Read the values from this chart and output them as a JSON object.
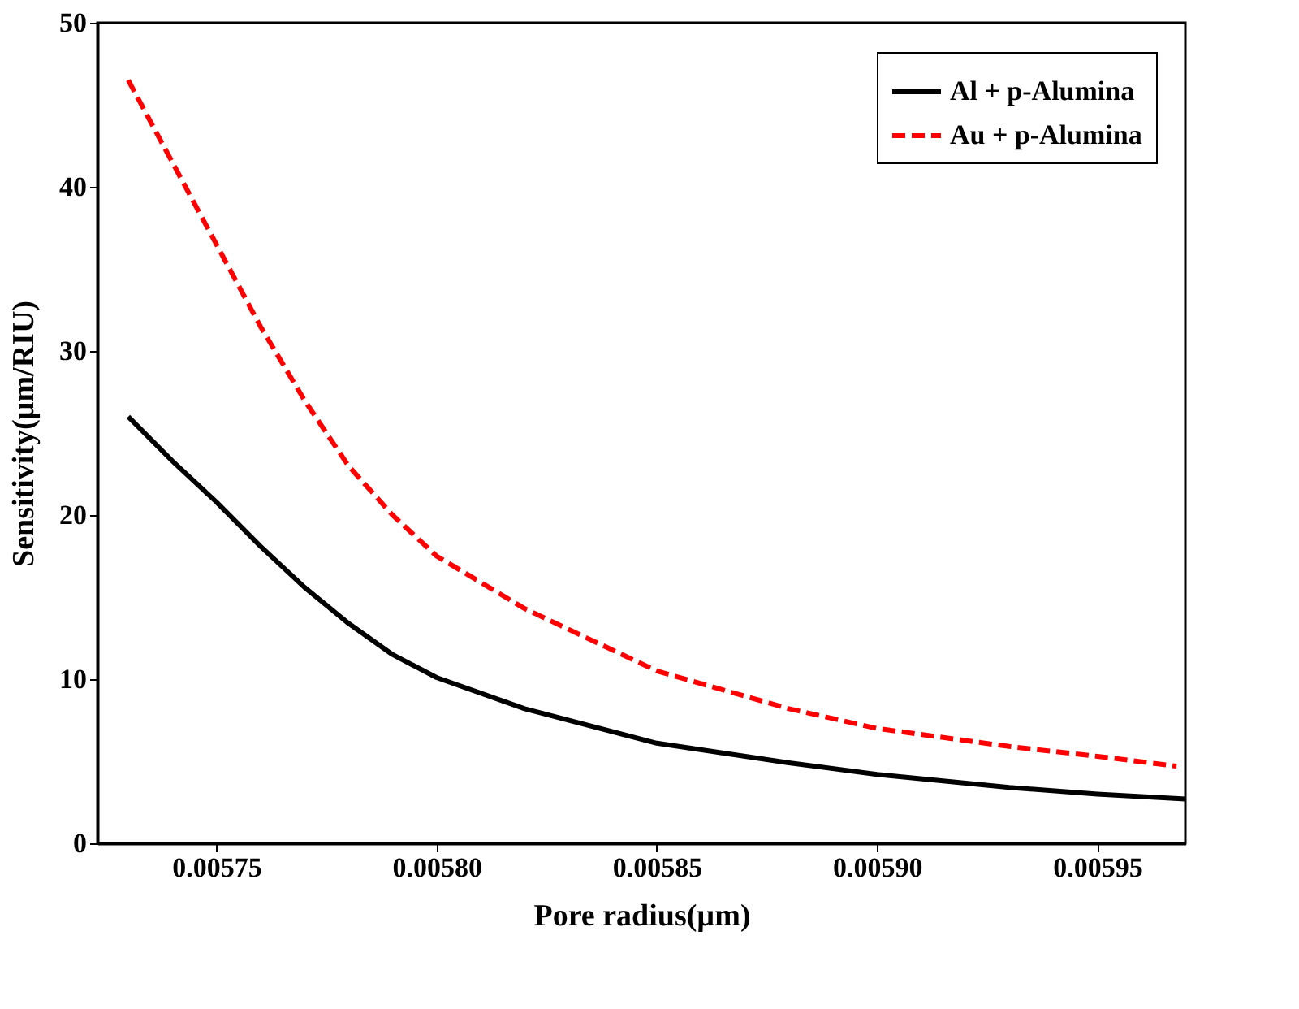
{
  "chart_data": {
    "type": "line",
    "xlabel": "Pore radius(µm)",
    "ylabel": "Sensitivity(µm/RIU)",
    "xlim": [
      0.005723,
      0.00597
    ],
    "ylim": [
      0,
      50
    ],
    "xticks": [
      0.00575,
      {
        "value": 0.0058,
        "label": "0.00580"
      },
      0.00585,
      {
        "value": 0.0059,
        "label": "0.00590"
      },
      0.00595
    ],
    "yticks": [
      0,
      10,
      20,
      30,
      40,
      50
    ],
    "grid": false,
    "legend": "top right",
    "series": [
      {
        "name": "Al + p-Alumina",
        "color": "#000000",
        "line_style": "solid",
        "x": [
          0.00573,
          0.00574,
          0.00575,
          0.00576,
          0.00577,
          0.00578,
          0.00579,
          0.0058,
          0.00582,
          0.00585,
          0.00588,
          0.0059,
          0.00593,
          0.00595,
          0.00597
        ],
        "values": [
          26,
          23.3,
          20.8,
          18.1,
          15.6,
          13.4,
          11.5,
          10.1,
          8.2,
          6.1,
          4.9,
          4.2,
          3.4,
          3.0,
          2.7
        ]
      },
      {
        "name": "Au + p-Alumina",
        "color": "#ff0000",
        "line_style": "dashed",
        "x": [
          0.00573,
          0.00574,
          0.00575,
          0.00576,
          0.00577,
          0.00578,
          0.00579,
          0.0058,
          0.00582,
          0.00585,
          0.00588,
          0.0059,
          0.00593,
          0.00595,
          0.005968
        ],
        "values": [
          46.5,
          41.5,
          36.5,
          31.5,
          27,
          23,
          20,
          17.5,
          14.3,
          10.5,
          8.2,
          7,
          5.9,
          5.3,
          4.7
        ]
      }
    ]
  }
}
